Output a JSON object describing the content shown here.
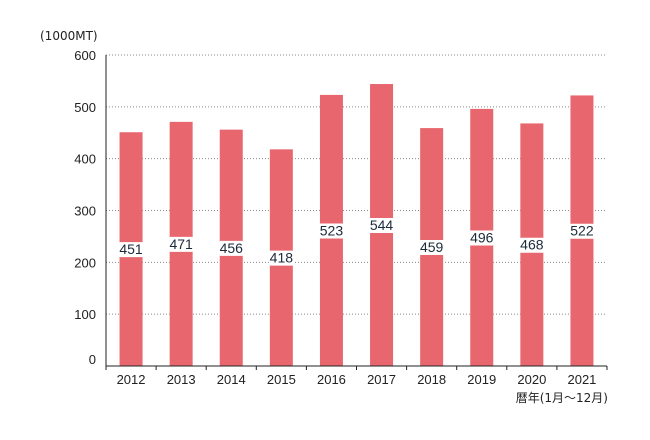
{
  "chart_data": {
    "type": "bar",
    "categories": [
      "2012",
      "2013",
      "2014",
      "2015",
      "2016",
      "2017",
      "2018",
      "2019",
      "2020",
      "2021"
    ],
    "values": [
      451,
      471,
      456,
      418,
      523,
      544,
      459,
      496,
      468,
      522
    ],
    "ylabel": "(1000MT)",
    "xlabel": "暦年(1月～12月)",
    "ylim": [
      0,
      600
    ],
    "yticks": [
      0,
      100,
      200,
      300,
      400,
      500,
      600
    ],
    "grid": true,
    "bar_color": "#e8676f",
    "grid_color": "#8a8a8a",
    "axis_color": "#222222"
  }
}
